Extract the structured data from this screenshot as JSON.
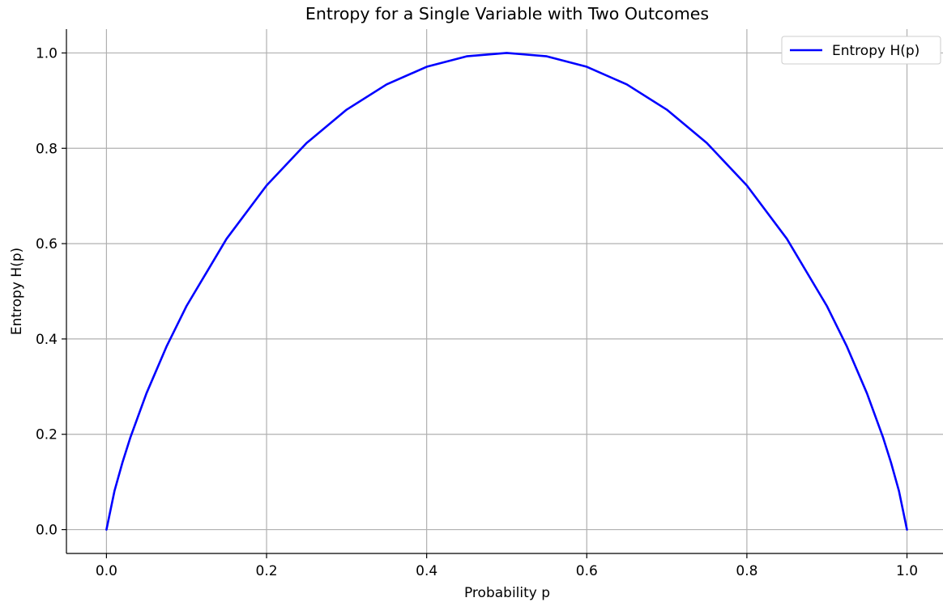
{
  "chart_data": {
    "type": "line",
    "title": "Entropy for a Single Variable with Two Outcomes",
    "xlabel": "Probability p",
    "ylabel": "Entropy H(p)",
    "xlim": [
      -0.05,
      1.045
    ],
    "ylim": [
      -0.05,
      1.05
    ],
    "xticks": [
      0.0,
      0.2,
      0.4,
      0.6,
      0.8,
      1.0
    ],
    "xtick_labels": [
      "0.0",
      "0.2",
      "0.4",
      "0.6",
      "0.8",
      "1.0"
    ],
    "yticks": [
      0.0,
      0.2,
      0.4,
      0.6,
      0.8,
      1.0
    ],
    "ytick_labels": [
      "0.0",
      "0.2",
      "0.4",
      "0.6",
      "0.8",
      "1.0"
    ],
    "grid": true,
    "legend_position": "top-right",
    "series": [
      {
        "name": "Entropy H(p)",
        "color": "#0000ff",
        "x": [
          0.0,
          0.01,
          0.02,
          0.03,
          0.05,
          0.075,
          0.1,
          0.15,
          0.2,
          0.25,
          0.3,
          0.35,
          0.4,
          0.45,
          0.5,
          0.55,
          0.6,
          0.65,
          0.7,
          0.75,
          0.8,
          0.85,
          0.9,
          0.925,
          0.95,
          0.97,
          0.98,
          0.99,
          1.0
        ],
        "y": [
          0.0,
          0.081,
          0.141,
          0.194,
          0.286,
          0.384,
          0.469,
          0.61,
          0.722,
          0.811,
          0.881,
          0.934,
          0.971,
          0.993,
          1.0,
          0.993,
          0.971,
          0.934,
          0.881,
          0.811,
          0.722,
          0.61,
          0.469,
          0.384,
          0.286,
          0.194,
          0.141,
          0.081,
          0.0
        ]
      }
    ]
  }
}
